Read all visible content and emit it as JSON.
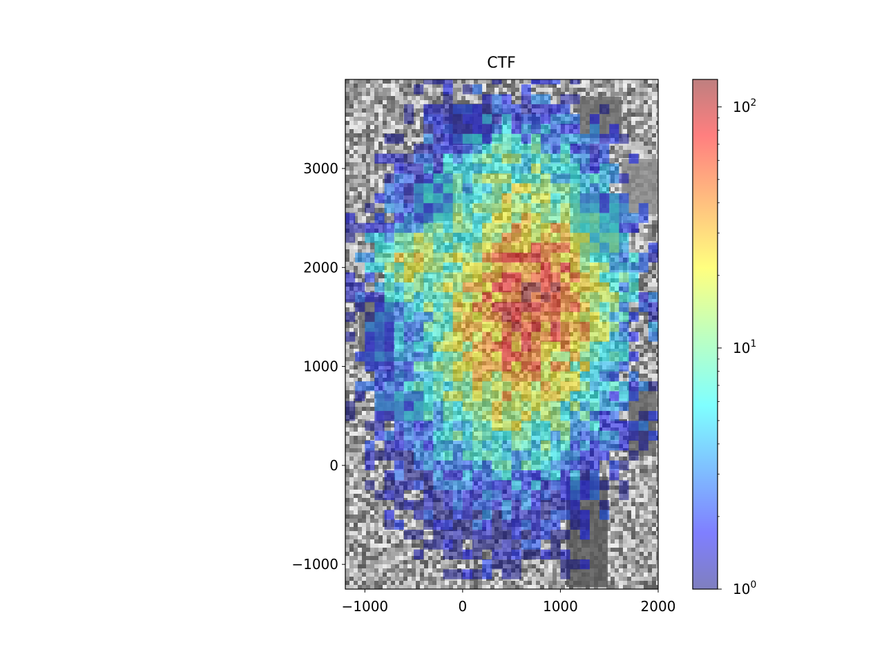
{
  "chart_data": {
    "type": "heatmap",
    "title": "CTF",
    "xlabel": "",
    "ylabel": "",
    "xlim": [
      -1200,
      2000
    ],
    "ylim": [
      -1250,
      3900
    ],
    "x_ticks": [
      -1000,
      0,
      1000,
      2000
    ],
    "x_tick_labels": [
      "−1000",
      "0",
      "1000",
      "2000"
    ],
    "y_ticks": [
      -1000,
      0,
      1000,
      2000,
      3000
    ],
    "y_tick_labels": [
      "−1000",
      "0",
      "1000",
      "2000",
      "3000"
    ],
    "background": "grayscale aerial photograph of buildings",
    "grid": false,
    "colormap": "jet",
    "colormap_alpha": 0.5,
    "bin_size": 100,
    "color_scale": "log",
    "colorbar": {
      "position": "right",
      "range": [
        1,
        130
      ],
      "major_ticks": [
        1,
        10,
        100
      ],
      "major_tick_bases": [
        "10",
        "10",
        "10"
      ],
      "major_tick_exponents": [
        "0",
        "1",
        "2"
      ]
    },
    "density_model": {
      "description": "sum of gaussian blobs in log10 count space",
      "blobs": [
        {
          "x": 700,
          "y": 1700,
          "sx": 900,
          "sy": 1100,
          "amp": 1.35
        },
        {
          "x": -650,
          "y": 2100,
          "sx": 250,
          "sy": 250,
          "amp": 0.9
        },
        {
          "x": 850,
          "y": 1800,
          "sx": 500,
          "sy": 400,
          "amp": 0.45
        },
        {
          "x": 300,
          "y": 600,
          "sx": 700,
          "sy": 700,
          "amp": 0.45
        },
        {
          "x": 500,
          "y": 3000,
          "sx": 600,
          "sy": 400,
          "amp": 0.35
        }
      ],
      "support_center": [
        400,
        1400
      ],
      "support_radii": [
        1500,
        2550
      ]
    }
  },
  "colors": {
    "axes_frame": "#000000",
    "photo_dark": "#2f2f2f",
    "photo_light": "#d8d8d8"
  }
}
